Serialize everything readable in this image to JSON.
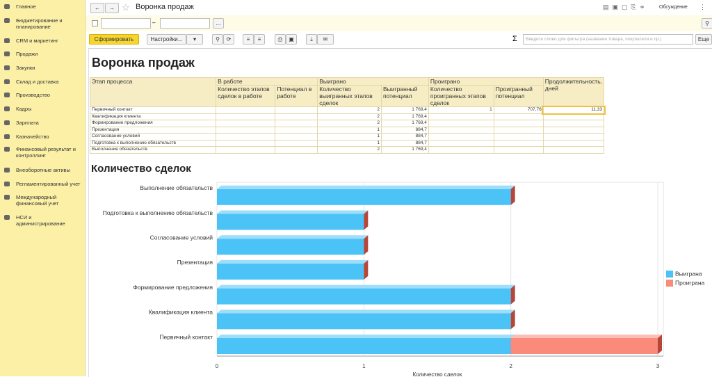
{
  "sidebar": {
    "items": [
      "Главное",
      "Бюджетирование и планирование",
      "CRM и маркетинг",
      "Продажи",
      "Закупки",
      "Склад и доставка",
      "Производство",
      "Кадры",
      "Зарплата",
      "Казначейство",
      "Финансовый результат и контроллинг",
      "Внеоборотные активы",
      "Регламентированный учет",
      "Международный финансовый учет",
      "НСИ и администрирование"
    ]
  },
  "header": {
    "title": "Воронка продаж",
    "discussion": "Обсуждение"
  },
  "filter": {
    "separator": "–",
    "more": "..."
  },
  "toolbar": {
    "generate": "Сформировать",
    "settings": "Настройки...",
    "search_placeholder": "Введите слово для фильтра (название товара, покупателя и пр.)",
    "more": "Еще"
  },
  "report": {
    "title": "Воронка продаж",
    "table": {
      "group_headers": [
        "Этап процесса",
        "В работе",
        "Выиграно",
        "Проиграно",
        "Продолжительность, дней"
      ],
      "sub_headers": [
        "Количество этапов сделок в работе",
        "Потенциал в работе",
        "Количество выигранных этапов сделок",
        "Выигранный потенциал",
        "Количество проигранных этапов сделок",
        "Проигранный потенциал"
      ],
      "rows": [
        [
          "Первичный контакт",
          null,
          null,
          "2",
          "1 769,4",
          "1",
          "707,76",
          "11,33"
        ],
        [
          "Квалификация клиента",
          null,
          null,
          "2",
          "1 769,4",
          null,
          null,
          null
        ],
        [
          "Формирование предложения",
          null,
          null,
          "2",
          "1 769,4",
          null,
          null,
          null
        ],
        [
          "Презентация",
          null,
          null,
          "1",
          "884,7",
          null,
          null,
          null
        ],
        [
          "Согласование условий",
          null,
          null,
          "1",
          "884,7",
          null,
          null,
          null
        ],
        [
          "Подготовка к выполнению обязательств",
          null,
          null,
          "1",
          "884,7",
          null,
          null,
          null
        ],
        [
          "Выполнение обязательств",
          null,
          null,
          "2",
          "1 769,4",
          null,
          null,
          null
        ]
      ]
    }
  },
  "chart_data": {
    "type": "bar",
    "orientation": "horizontal",
    "stacked": true,
    "title": "Количество сделок",
    "x_label": "Количество сделок",
    "categories": [
      "Первичный контакт",
      "Квалификация клиента",
      "Формирование предложения",
      "Презентация",
      "Согласование условий",
      "Подготовка к выполнению обязательств",
      "Выполнение обязательств"
    ],
    "series": [
      {
        "name": "Выиграна",
        "color": "#4cc3f7",
        "values": [
          2,
          2,
          2,
          1,
          1,
          1,
          2
        ]
      },
      {
        "name": "Проиграна",
        "color": "#fa8a7a",
        "values": [
          1,
          null,
          null,
          null,
          null,
          null,
          null
        ]
      }
    ],
    "xlim": [
      0,
      3
    ],
    "xticks": [
      0,
      1,
      2,
      3
    ],
    "grid": true,
    "legend": "right"
  }
}
